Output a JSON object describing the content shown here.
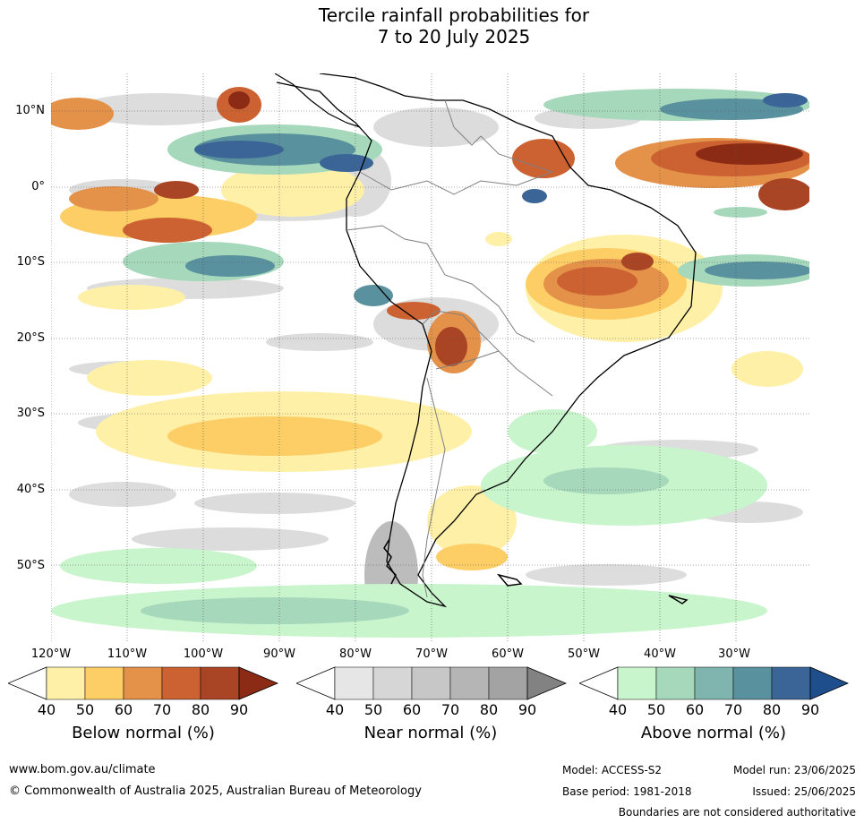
{
  "title": {
    "line1": "Tercile rainfall probabilities for",
    "line2": "7 to 20 July 2025"
  },
  "map": {
    "lat_labels": [
      "10°N",
      "0°",
      "10°S",
      "20°S",
      "30°S",
      "40°S",
      "50°S"
    ],
    "lon_labels": [
      "120°W",
      "110°W",
      "100°W",
      "90°W",
      "80°W",
      "70°W",
      "60°W",
      "50°W",
      "40°W",
      "30°W"
    ],
    "gridlines": true,
    "regions": [
      {
        "category": "below",
        "level": 90,
        "area": "equatorial Atlantic off northern Brazil"
      },
      {
        "category": "below",
        "level": 80,
        "area": "central Brazil"
      },
      {
        "category": "below",
        "level": 80,
        "area": "Bolivia / northern Argentina"
      },
      {
        "category": "below",
        "level": 70,
        "area": "eastern Pacific near equator"
      },
      {
        "category": "below",
        "level": 50,
        "area": "subtropical southeast Pacific"
      },
      {
        "category": "above",
        "level": 80,
        "area": "tropical eastern Pacific near Panama"
      },
      {
        "category": "above",
        "level": 70,
        "area": "tropical Atlantic north of equator"
      },
      {
        "category": "above",
        "level": 70,
        "area": "Atlantic off northeast Brazil"
      },
      {
        "category": "above",
        "level": 70,
        "area": "Peru coast"
      },
      {
        "category": "above",
        "level": 50,
        "area": "southwest Atlantic and southern Pacific"
      },
      {
        "category": "near",
        "level": 50,
        "area": "scattered across Pacific and Andes"
      }
    ],
    "colors": {
      "below": [
        "#fff0a8",
        "#fdcd66",
        "#e4924a",
        "#cc6131",
        "#a94425",
        "#8b2a15"
      ],
      "near": [
        "#e6e6e6",
        "#d6d6d6",
        "#c7c7c7",
        "#b5b5b5",
        "#a3a3a3",
        "#828282"
      ],
      "above": [
        "#c8f5cc",
        "#a6d8bb",
        "#7fb5ae",
        "#5a919e",
        "#3b6596",
        "#1f4e8c"
      ],
      "land_outline": "#000000",
      "border": "#808080",
      "grid": "#555555"
    }
  },
  "colorbars": [
    {
      "label": "Below normal (%)",
      "ticks": [
        "40",
        "50",
        "60",
        "70",
        "80",
        "90"
      ]
    },
    {
      "label": "Near normal (%)",
      "ticks": [
        "40",
        "50",
        "60",
        "70",
        "80",
        "90"
      ]
    },
    {
      "label": "Above normal (%)",
      "ticks": [
        "40",
        "50",
        "60",
        "70",
        "80",
        "90"
      ]
    }
  ],
  "footer": {
    "website": "www.bom.gov.au/climate",
    "copyright": "© Commonwealth of Australia 2025, Australian Bureau of Meteorology",
    "model": "Model: ACCESS-S2",
    "base_period": "Base period: 1981-2018",
    "model_run": "Model run: 23/06/2025",
    "issued": "Issued: 25/06/2025",
    "disclaimer": "Boundaries are not considered authoritative"
  }
}
